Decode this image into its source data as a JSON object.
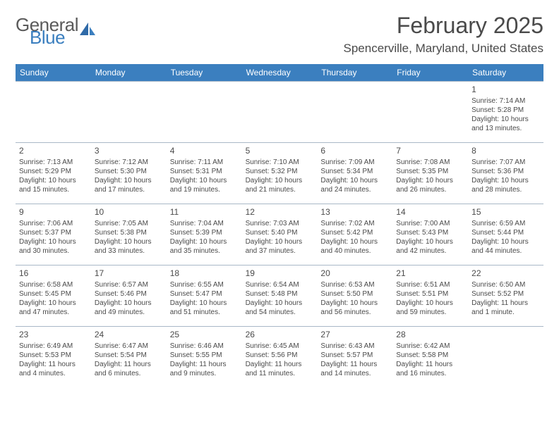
{
  "brand": {
    "line1": "General",
    "line2": "Blue",
    "text_color": "#5a5a5a",
    "accent_color": "#3b7fbf"
  },
  "header": {
    "month_title": "February 2025",
    "location": "Spencerville, Maryland, United States"
  },
  "styles": {
    "dow_bg": "#3b7fbf",
    "dow_text": "#ffffff",
    "grid_border": "#a9b8c7",
    "body_text": "#4a4a4a",
    "background": "#ffffff",
    "font_family": "Arial"
  },
  "days_of_week": [
    "Sunday",
    "Monday",
    "Tuesday",
    "Wednesday",
    "Thursday",
    "Friday",
    "Saturday"
  ],
  "weeks": [
    [
      null,
      null,
      null,
      null,
      null,
      null,
      {
        "n": "1",
        "sr": "Sunrise: 7:14 AM",
        "ss": "Sunset: 5:28 PM",
        "dl": "Daylight: 10 hours and 13 minutes."
      }
    ],
    [
      {
        "n": "2",
        "sr": "Sunrise: 7:13 AM",
        "ss": "Sunset: 5:29 PM",
        "dl": "Daylight: 10 hours and 15 minutes."
      },
      {
        "n": "3",
        "sr": "Sunrise: 7:12 AM",
        "ss": "Sunset: 5:30 PM",
        "dl": "Daylight: 10 hours and 17 minutes."
      },
      {
        "n": "4",
        "sr": "Sunrise: 7:11 AM",
        "ss": "Sunset: 5:31 PM",
        "dl": "Daylight: 10 hours and 19 minutes."
      },
      {
        "n": "5",
        "sr": "Sunrise: 7:10 AM",
        "ss": "Sunset: 5:32 PM",
        "dl": "Daylight: 10 hours and 21 minutes."
      },
      {
        "n": "6",
        "sr": "Sunrise: 7:09 AM",
        "ss": "Sunset: 5:34 PM",
        "dl": "Daylight: 10 hours and 24 minutes."
      },
      {
        "n": "7",
        "sr": "Sunrise: 7:08 AM",
        "ss": "Sunset: 5:35 PM",
        "dl": "Daylight: 10 hours and 26 minutes."
      },
      {
        "n": "8",
        "sr": "Sunrise: 7:07 AM",
        "ss": "Sunset: 5:36 PM",
        "dl": "Daylight: 10 hours and 28 minutes."
      }
    ],
    [
      {
        "n": "9",
        "sr": "Sunrise: 7:06 AM",
        "ss": "Sunset: 5:37 PM",
        "dl": "Daylight: 10 hours and 30 minutes."
      },
      {
        "n": "10",
        "sr": "Sunrise: 7:05 AM",
        "ss": "Sunset: 5:38 PM",
        "dl": "Daylight: 10 hours and 33 minutes."
      },
      {
        "n": "11",
        "sr": "Sunrise: 7:04 AM",
        "ss": "Sunset: 5:39 PM",
        "dl": "Daylight: 10 hours and 35 minutes."
      },
      {
        "n": "12",
        "sr": "Sunrise: 7:03 AM",
        "ss": "Sunset: 5:40 PM",
        "dl": "Daylight: 10 hours and 37 minutes."
      },
      {
        "n": "13",
        "sr": "Sunrise: 7:02 AM",
        "ss": "Sunset: 5:42 PM",
        "dl": "Daylight: 10 hours and 40 minutes."
      },
      {
        "n": "14",
        "sr": "Sunrise: 7:00 AM",
        "ss": "Sunset: 5:43 PM",
        "dl": "Daylight: 10 hours and 42 minutes."
      },
      {
        "n": "15",
        "sr": "Sunrise: 6:59 AM",
        "ss": "Sunset: 5:44 PM",
        "dl": "Daylight: 10 hours and 44 minutes."
      }
    ],
    [
      {
        "n": "16",
        "sr": "Sunrise: 6:58 AM",
        "ss": "Sunset: 5:45 PM",
        "dl": "Daylight: 10 hours and 47 minutes."
      },
      {
        "n": "17",
        "sr": "Sunrise: 6:57 AM",
        "ss": "Sunset: 5:46 PM",
        "dl": "Daylight: 10 hours and 49 minutes."
      },
      {
        "n": "18",
        "sr": "Sunrise: 6:55 AM",
        "ss": "Sunset: 5:47 PM",
        "dl": "Daylight: 10 hours and 51 minutes."
      },
      {
        "n": "19",
        "sr": "Sunrise: 6:54 AM",
        "ss": "Sunset: 5:48 PM",
        "dl": "Daylight: 10 hours and 54 minutes."
      },
      {
        "n": "20",
        "sr": "Sunrise: 6:53 AM",
        "ss": "Sunset: 5:50 PM",
        "dl": "Daylight: 10 hours and 56 minutes."
      },
      {
        "n": "21",
        "sr": "Sunrise: 6:51 AM",
        "ss": "Sunset: 5:51 PM",
        "dl": "Daylight: 10 hours and 59 minutes."
      },
      {
        "n": "22",
        "sr": "Sunrise: 6:50 AM",
        "ss": "Sunset: 5:52 PM",
        "dl": "Daylight: 11 hours and 1 minute."
      }
    ],
    [
      {
        "n": "23",
        "sr": "Sunrise: 6:49 AM",
        "ss": "Sunset: 5:53 PM",
        "dl": "Daylight: 11 hours and 4 minutes."
      },
      {
        "n": "24",
        "sr": "Sunrise: 6:47 AM",
        "ss": "Sunset: 5:54 PM",
        "dl": "Daylight: 11 hours and 6 minutes."
      },
      {
        "n": "25",
        "sr": "Sunrise: 6:46 AM",
        "ss": "Sunset: 5:55 PM",
        "dl": "Daylight: 11 hours and 9 minutes."
      },
      {
        "n": "26",
        "sr": "Sunrise: 6:45 AM",
        "ss": "Sunset: 5:56 PM",
        "dl": "Daylight: 11 hours and 11 minutes."
      },
      {
        "n": "27",
        "sr": "Sunrise: 6:43 AM",
        "ss": "Sunset: 5:57 PM",
        "dl": "Daylight: 11 hours and 14 minutes."
      },
      {
        "n": "28",
        "sr": "Sunrise: 6:42 AM",
        "ss": "Sunset: 5:58 PM",
        "dl": "Daylight: 11 hours and 16 minutes."
      },
      null
    ]
  ]
}
